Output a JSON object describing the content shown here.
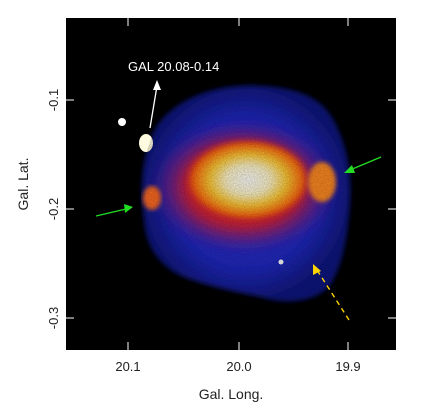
{
  "figure": {
    "xlabel": "Gal. Long.",
    "ylabel": "Gal. Lat.",
    "x_ticks": [
      "20.1",
      "20.0",
      "19.9"
    ],
    "y_ticks": [
      "-0.1",
      "-0.2",
      "-0.3"
    ],
    "annotation": "GAL 20.08-0.14"
  },
  "colors": {
    "background": "#000000",
    "faint_emission": "#1a24c8",
    "mid_emission": "#e02020",
    "bright_emission": "#ffffff",
    "arrow_annotation": "#ffffff",
    "arrow_green": "#22dd22",
    "arrow_yellow": "#ffd400"
  }
}
